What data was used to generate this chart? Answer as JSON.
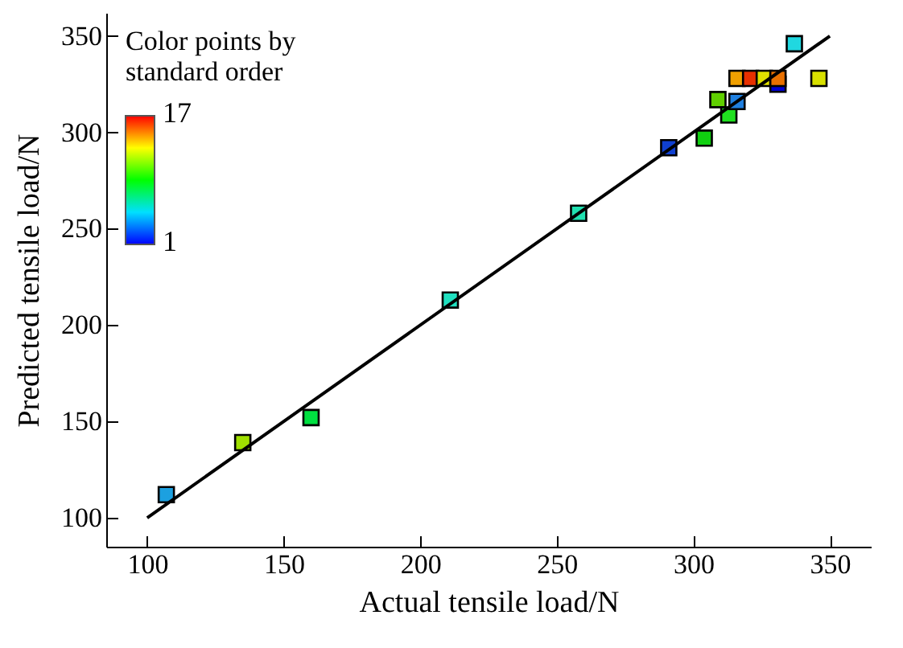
{
  "chart_data": {
    "type": "scatter",
    "xlabel": "Actual tensile load/N",
    "ylabel": "Predicted tensile load/N",
    "annotations": [
      "Color points by standard order",
      "17",
      "1"
    ],
    "xlim": [
      85,
      365
    ],
    "ylim": [
      85,
      362
    ],
    "xticks": [
      100,
      150,
      200,
      250,
      300,
      350
    ],
    "yticks": [
      100,
      150,
      200,
      250,
      300,
      350
    ],
    "grid": false,
    "series": [
      {
        "x": [
          107,
          135,
          160,
          211,
          258,
          291,
          304,
          309,
          313,
          316,
          316,
          321,
          326,
          331,
          331,
          337,
          346
        ],
        "values": [
          112,
          139,
          152,
          213,
          258,
          292,
          297,
          317,
          309,
          316,
          328,
          328,
          328,
          325,
          328,
          346,
          328
        ],
        "marker": "square",
        "colors": [
          "#1ca0e0",
          "#a0e000",
          "#00e040",
          "#20e0c0",
          "#20e0b0",
          "#1040d0",
          "#10d010",
          "#60d000",
          "#20e020",
          "#2080e0",
          "#f0a000",
          "#e83000",
          "#e0e000",
          "#0000d0",
          "#e87000",
          "#20d8e0",
          "#d8e000"
        ]
      },
      {
        "type": "line",
        "x": [
          100,
          350
        ],
        "values": [
          100,
          350
        ],
        "color": "#000000",
        "line_style": "solid"
      }
    ]
  }
}
